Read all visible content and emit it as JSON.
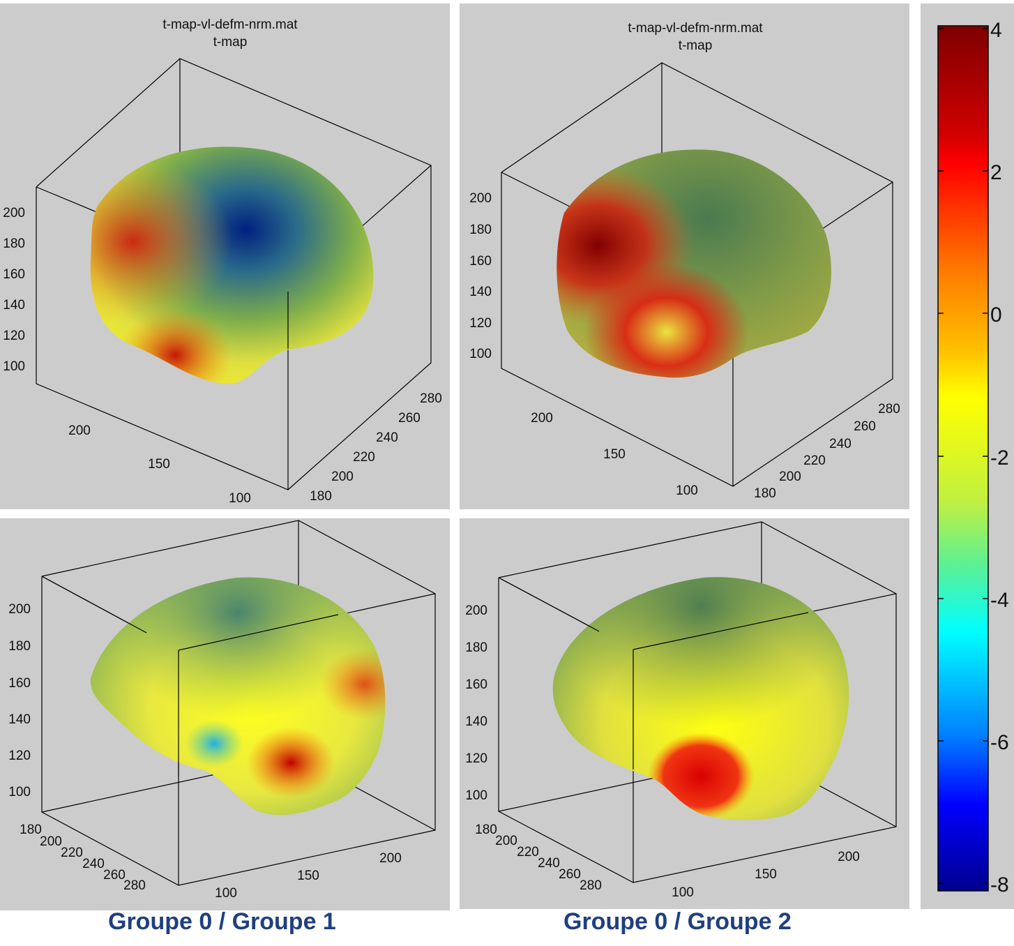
{
  "panels": [
    {
      "id": "top-left",
      "title_line1": "t-map-vl-defm-nrm.mat",
      "title_line2": "t-map",
      "z_ticks": [
        "200",
        "180",
        "160",
        "140",
        "120",
        "100"
      ],
      "x_ticks": [
        "200",
        "150",
        "100"
      ],
      "y_ticks": [
        "280",
        "260",
        "240",
        "220",
        "200",
        "180"
      ]
    },
    {
      "id": "top-right",
      "title_line1": "t-map-vl-defm-nrm.mat",
      "title_line2": "t-map",
      "z_ticks": [
        "200",
        "180",
        "160",
        "140",
        "120",
        "100"
      ],
      "x_ticks": [
        "200",
        "150",
        "100"
      ],
      "y_ticks": [
        "280",
        "260",
        "240",
        "220",
        "200",
        "180"
      ]
    },
    {
      "id": "bottom-left",
      "z_ticks": [
        "200",
        "180",
        "160",
        "140",
        "120",
        "100"
      ],
      "x_ticks": [
        "200",
        "150",
        "100"
      ],
      "y_ticks": [
        "180",
        "200",
        "220",
        "240",
        "260",
        "280"
      ]
    },
    {
      "id": "bottom-right",
      "z_ticks": [
        "200",
        "180",
        "160",
        "140",
        "120",
        "100"
      ],
      "x_ticks": [
        "200",
        "150",
        "100"
      ],
      "y_ticks": [
        "180",
        "200",
        "220",
        "240",
        "260",
        "280"
      ]
    }
  ],
  "captions": {
    "left": "Groupe 0 / Groupe 1",
    "right": "Groupe 0 / Groupe 2"
  },
  "colorbar": {
    "ticks": [
      "4",
      "2",
      "0",
      "-2",
      "-4",
      "-6",
      "-8"
    ],
    "colormap": "jet",
    "colors": [
      "#7f0000",
      "#ff0000",
      "#ff8000",
      "#ffff00",
      "#80ff80",
      "#00ffff",
      "#0080ff",
      "#0000ff",
      "#00008f"
    ]
  }
}
